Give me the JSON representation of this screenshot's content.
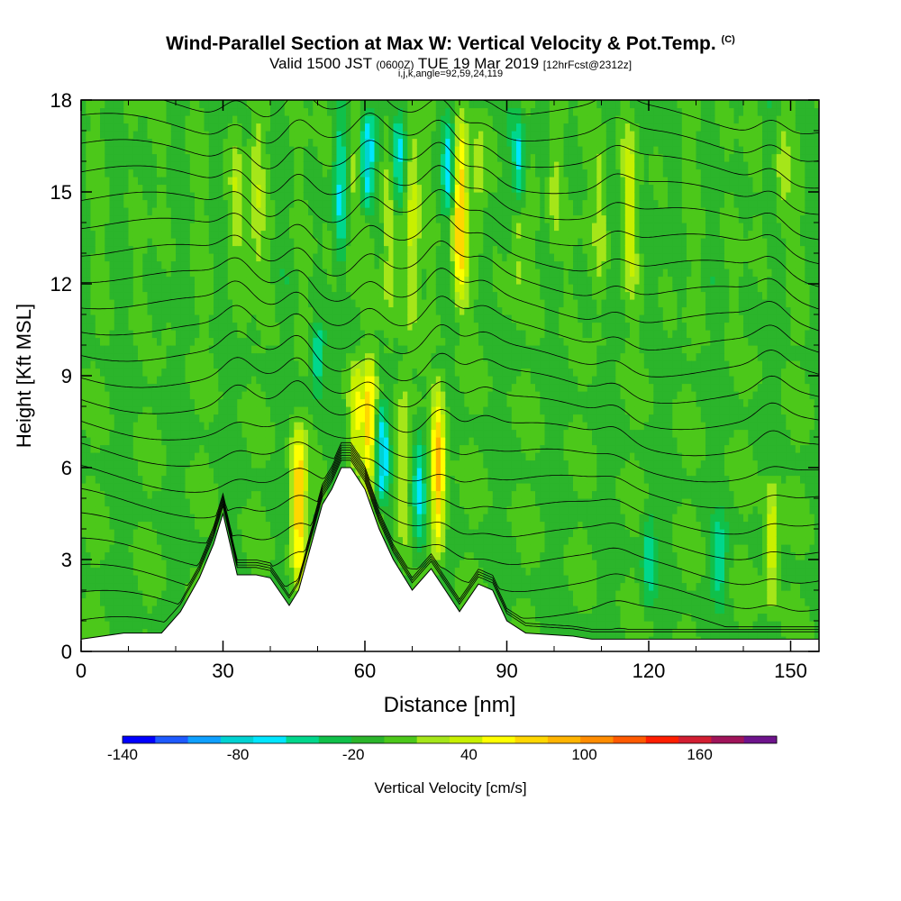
{
  "header": {
    "title": "Wind-Parallel Section at Max W: Vertical Velocity & Pot.Temp.",
    "copyright": "(C)",
    "valid_main": "Valid 1500 JST",
    "valid_utc": "(0600Z)",
    "valid_date": "TUE 19 Mar 2019",
    "forecast": "[12hrFcst@2312z]",
    "indices": "i,j,k,angle=92,59,24,119"
  },
  "chart_data": {
    "type": "heatmap",
    "xlabel": "Distance [nm]",
    "ylabel": "Height [Kft MSL]",
    "xlim": [
      0,
      156
    ],
    "ylim": [
      0,
      18
    ],
    "x_ticks": [
      "0",
      "30",
      "60",
      "90",
      "120",
      "150"
    ],
    "y_ticks": [
      "0",
      "3",
      "6",
      "9",
      "12",
      "15",
      "18"
    ],
    "colorbar": {
      "label": "Vertical Velocity [cm/s]",
      "tick_labels": [
        "-140",
        "-80",
        "-20",
        "40",
        "100",
        "160"
      ],
      "min": -140,
      "max": 200,
      "step": 20,
      "colors": [
        "#0000ff",
        "#1e5aff",
        "#0fa0ff",
        "#00d2d2",
        "#00e6ff",
        "#00d78c",
        "#10c04a",
        "#2bb52b",
        "#4cc81a",
        "#a5e619",
        "#c8f000",
        "#ffff00",
        "#ffd700",
        "#ffb400",
        "#ff8c00",
        "#ff5a00",
        "#ff1e00",
        "#d21e32",
        "#a0145a",
        "#6e148c"
      ]
    },
    "terrain": [
      [
        0,
        0.4
      ],
      [
        9,
        0.6
      ],
      [
        17,
        0.6
      ],
      [
        21,
        1.3
      ],
      [
        25,
        2.4
      ],
      [
        28,
        3.5
      ],
      [
        30,
        4.5
      ],
      [
        33,
        2.5
      ],
      [
        35,
        2.5
      ],
      [
        37,
        2.5
      ],
      [
        40,
        2.4
      ],
      [
        44,
        1.5
      ],
      [
        46,
        2.0
      ],
      [
        51,
        4.8
      ],
      [
        53,
        5.3
      ],
      [
        55,
        6.0
      ],
      [
        57,
        6.0
      ],
      [
        60,
        5.3
      ],
      [
        63,
        4.0
      ],
      [
        66,
        3.0
      ],
      [
        70,
        2.0
      ],
      [
        74,
        2.7
      ],
      [
        77,
        2.0
      ],
      [
        80,
        1.3
      ],
      [
        84,
        2.2
      ],
      [
        87,
        2.0
      ],
      [
        90,
        1.0
      ],
      [
        94,
        0.6
      ],
      [
        104,
        0.5
      ],
      [
        108,
        0.4
      ],
      [
        156,
        0.4
      ]
    ],
    "updraft_bands": [
      {
        "x": 46,
        "zmin": 1.6,
        "zmax": 8.0,
        "peak": 120
      },
      {
        "x": 58,
        "zmin": 5.5,
        "zmax": 9.9,
        "peak": 80
      },
      {
        "x": 61,
        "zmin": 4.6,
        "zmax": 10.2,
        "peak": 110
      },
      {
        "x": 68,
        "zmin": 2.5,
        "zmax": 10.0,
        "peak": 60
      },
      {
        "x": 75.5,
        "zmin": 2.6,
        "zmax": 9.4,
        "peak": 130
      },
      {
        "x": 146,
        "zmin": 1.0,
        "zmax": 6.0,
        "peak": 80
      },
      {
        "x": 33,
        "zmin": 12.0,
        "zmax": 18.0,
        "peak": 60
      },
      {
        "x": 37,
        "zmin": 11.0,
        "zmax": 18.0,
        "peak": 50
      },
      {
        "x": 57,
        "zmin": 11.0,
        "zmax": 18.0,
        "peak": 50
      },
      {
        "x": 65,
        "zmin": 9.0,
        "zmax": 18.0,
        "peak": 60
      },
      {
        "x": 70,
        "zmin": 10.0,
        "zmax": 18.0,
        "peak": 70
      },
      {
        "x": 80,
        "zmin": 10.5,
        "zmax": 18.0,
        "peak": 120
      },
      {
        "x": 84,
        "zmin": 13.0,
        "zmax": 18.0,
        "peak": 50
      },
      {
        "x": 92,
        "zmin": 10.0,
        "zmax": 18.0,
        "peak": 50
      },
      {
        "x": 100,
        "zmin": 12.0,
        "zmax": 18.0,
        "peak": 50
      },
      {
        "x": 110,
        "zmin": 11.0,
        "zmax": 18.0,
        "peak": 50
      },
      {
        "x": 116,
        "zmin": 11.0,
        "zmax": 18.0,
        "peak": 60
      },
      {
        "x": 148,
        "zmin": 13.0,
        "zmax": 18.0,
        "peak": 50
      }
    ],
    "downdraft_bands": [
      {
        "x": 63.5,
        "zmin": 4.5,
        "zmax": 8.5,
        "peak": -70
      },
      {
        "x": 71.5,
        "zmin": 2.5,
        "zmax": 8.0,
        "peak": -50
      },
      {
        "x": 55,
        "zmin": 12.0,
        "zmax": 18.0,
        "peak": -40
      },
      {
        "x": 60.5,
        "zmin": 14.0,
        "zmax": 18.0,
        "peak": -80
      },
      {
        "x": 67,
        "zmin": 14.0,
        "zmax": 18.0,
        "peak": -50
      },
      {
        "x": 78,
        "zmin": 14.0,
        "zmax": 18.0,
        "peak": -50
      },
      {
        "x": 92.5,
        "zmin": 14.0,
        "zmax": 18.0,
        "peak": -70
      },
      {
        "x": 50,
        "zmin": 8.0,
        "zmax": 11.0,
        "peak": -40
      },
      {
        "x": 120,
        "zmin": 1.0,
        "zmax": 5.0,
        "peak": -30
      },
      {
        "x": 135,
        "zmin": 1.0,
        "zmax": 5.0,
        "peak": -30
      }
    ]
  }
}
